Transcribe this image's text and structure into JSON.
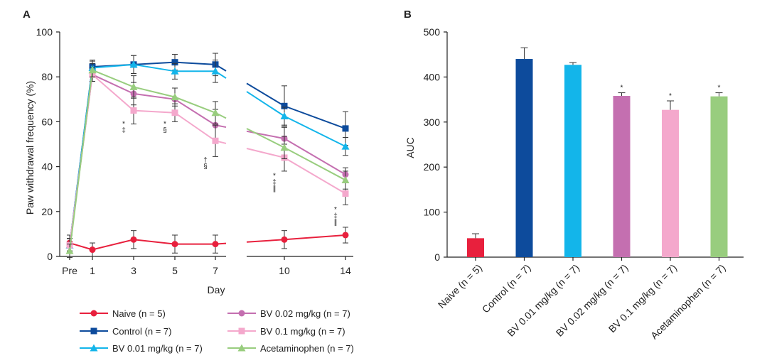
{
  "chart_data": [
    {
      "panel": "A",
      "type": "line",
      "x": [
        "Pre",
        "1",
        "3",
        "5",
        "7",
        "10",
        "14"
      ],
      "xlabel": "Day",
      "ylabel": "Paw withdrawal frequency (%)",
      "ylim": [
        0,
        100
      ],
      "yticks": [
        0,
        20,
        40,
        60,
        80,
        100
      ],
      "axis_break": "between 7 and 10",
      "legend_position": "bottom",
      "series": [
        {
          "name": "Naive (n = 5)",
          "color": "#e8203d",
          "marker": "circle",
          "values": [
            6,
            3,
            7.5,
            5.5,
            5.5,
            7.5,
            9.5
          ],
          "errors": [
            3.5,
            3,
            4,
            4,
            4,
            4,
            3.5
          ]
        },
        {
          "name": "Control (n = 7)",
          "color": "#0d4b9c",
          "marker": "square",
          "values": [
            5,
            84.5,
            85.5,
            86.5,
            85.5,
            67,
            57
          ],
          "errors": [
            3,
            3,
            4,
            3.5,
            5,
            9,
            7.5
          ]
        },
        {
          "name": "BV 0.01 mg/kg (n = 7)",
          "color": "#13b5ea",
          "marker": "triangle",
          "values": [
            5,
            84,
            85.5,
            82.5,
            82.5,
            62.5,
            49
          ],
          "errors": [
            3,
            3,
            4,
            3.5,
            5,
            4,
            4
          ]
        },
        {
          "name": "BV 0.02 mg/kg (n = 7)",
          "color": "#c46fb0",
          "marker": "circle",
          "values": [
            5,
            81,
            72.5,
            70,
            58.5,
            52.5,
            36.5
          ],
          "errors": [
            3,
            3,
            5,
            5,
            7,
            5,
            3
          ]
        },
        {
          "name": "BV 0.1 mg/kg (n = 7)",
          "color": "#f4a8cc",
          "marker": "square",
          "values": [
            5,
            81,
            65,
            64,
            51.5,
            44,
            28
          ],
          "errors": [
            3,
            3,
            6,
            4,
            7,
            6,
            5
          ]
        },
        {
          "name": "Acetaminophen (n = 7)",
          "color": "#98cd7e",
          "marker": "triangle",
          "values": [
            2.5,
            83,
            75.5,
            71,
            64,
            48.5,
            34
          ],
          "errors": [
            3,
            3,
            5,
            4,
            5,
            5,
            4
          ]
        }
      ],
      "annotations": [
        {
          "x": "3",
          "y_pos": 58,
          "marks": [
            "*",
            "‡"
          ]
        },
        {
          "x": "5",
          "y_pos": 58,
          "marks": [
            "*",
            "§"
          ]
        },
        {
          "x": "7",
          "y_pos": 42,
          "marks": [
            "†",
            "§"
          ]
        },
        {
          "x": "10",
          "y_pos": 35,
          "marks": [
            "*",
            "‡",
            "∥"
          ]
        },
        {
          "x": "14",
          "y_pos": 20,
          "marks": [
            "*",
            "‡",
            "∥"
          ]
        }
      ]
    },
    {
      "panel": "B",
      "type": "bar",
      "categories": [
        "Naive (n = 5)",
        "Control (n = 7)",
        "BV 0.01 mg/kg (n = 7)",
        "BV 0.02 mg/kg (n = 7)",
        "BV 0.1 mg/kg (n = 7)",
        "Acetaminophen (n = 7)"
      ],
      "values": [
        42,
        440,
        427,
        358,
        327,
        357
      ],
      "errors": [
        10,
        25,
        5,
        7,
        20,
        8
      ],
      "colors": [
        "#e8203d",
        "#0d4b9c",
        "#13b5ea",
        "#c46fb0",
        "#f4a8cc",
        "#98cd7e"
      ],
      "significance": [
        "",
        "",
        "",
        "*",
        "*",
        "*"
      ],
      "xlabel": "",
      "ylabel": "AUC",
      "ylim": [
        0,
        500
      ],
      "yticks": [
        0,
        100,
        200,
        300,
        400,
        500
      ]
    }
  ]
}
